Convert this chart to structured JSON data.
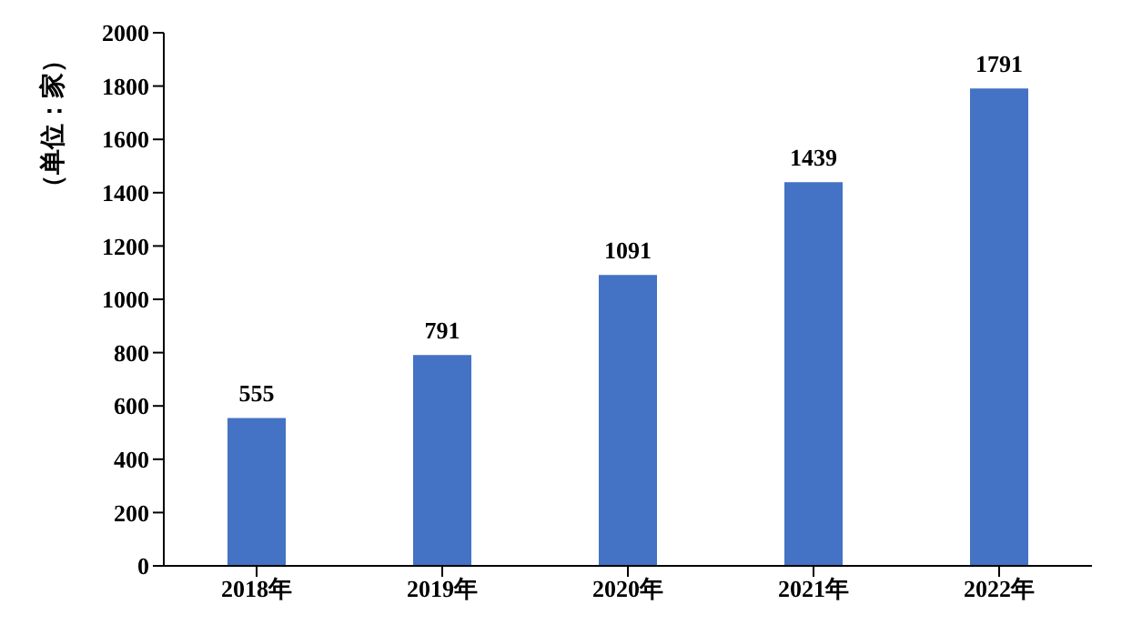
{
  "chart_data": {
    "type": "bar",
    "ylabel": "（单位：家）",
    "categories": [
      "2018年",
      "2019年",
      "2020年",
      "2021年",
      "2022年"
    ],
    "values": [
      555,
      791,
      1091,
      1439,
      1791
    ],
    "color": "#4472c4",
    "ylim": [
      0,
      2000
    ],
    "yticks": [
      0,
      200,
      400,
      600,
      800,
      1000,
      1200,
      1400,
      1600,
      1800,
      2000
    ],
    "data_labels": true
  }
}
